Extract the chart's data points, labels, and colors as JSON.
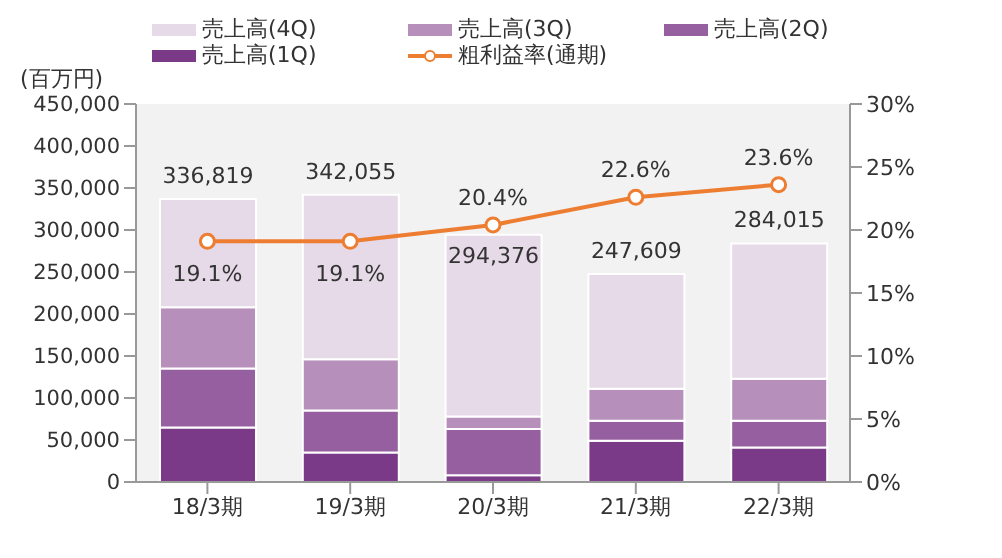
{
  "chart_data": {
    "type": "bar",
    "stacked": true,
    "ylabel": "(百万円)",
    "categories": [
      "18/3期",
      "19/3期",
      "20/3期",
      "21/3期",
      "22/3期"
    ],
    "series": [
      {
        "name": "売上高(1Q)",
        "color": "#7b3a88",
        "values": [
          65000,
          35000,
          8000,
          49000,
          41000
        ]
      },
      {
        "name": "売上高(2Q)",
        "color": "#9660a0",
        "values": [
          70000,
          50000,
          55000,
          24000,
          32000
        ]
      },
      {
        "name": "売上高(3Q)",
        "color": "#b690bb",
        "values": [
          73000,
          61000,
          15000,
          38000,
          50000
        ]
      },
      {
        "name": "売上高(4Q)",
        "color": "#e6d9e8",
        "values": [
          128819,
          196055,
          216376,
          136609,
          161015
        ]
      },
      {
        "name": "粗利益率(通期)",
        "type": "line",
        "axis": "y2",
        "color": "#ed7d31",
        "marker": "circle",
        "values": [
          19.1,
          19.1,
          20.4,
          22.6,
          23.6
        ],
        "value_labels": [
          "19.1%",
          "19.1%",
          "20.4%",
          "22.6%",
          "23.6%"
        ]
      }
    ],
    "totals": [
      "336,819",
      "342,055",
      "294,376",
      "247,609",
      "284,015"
    ],
    "ylim": [
      0,
      450000
    ],
    "yticks": [
      {
        "value": 0,
        "label": "0"
      },
      {
        "value": 50000,
        "label": "50,000"
      },
      {
        "value": 100000,
        "label": "100,000"
      },
      {
        "value": 150000,
        "label": "150,000"
      },
      {
        "value": 200000,
        "label": "200,000"
      },
      {
        "value": 250000,
        "label": "250,000"
      },
      {
        "value": 300000,
        "label": "300,000"
      },
      {
        "value": 350000,
        "label": "350,000"
      },
      {
        "value": 400000,
        "label": "400,000"
      },
      {
        "value": 450000,
        "label": "450,000"
      }
    ],
    "y2lim": [
      0,
      30
    ],
    "y2ticks": [
      {
        "value": 0,
        "label": "0%"
      },
      {
        "value": 5,
        "label": "5%"
      },
      {
        "value": 10,
        "label": "10%"
      },
      {
        "value": 15,
        "label": "15%"
      },
      {
        "value": 20,
        "label": "20%"
      },
      {
        "value": 25,
        "label": "25%"
      },
      {
        "value": 30,
        "label": "30%"
      }
    ],
    "grid": false,
    "legend": "top"
  }
}
